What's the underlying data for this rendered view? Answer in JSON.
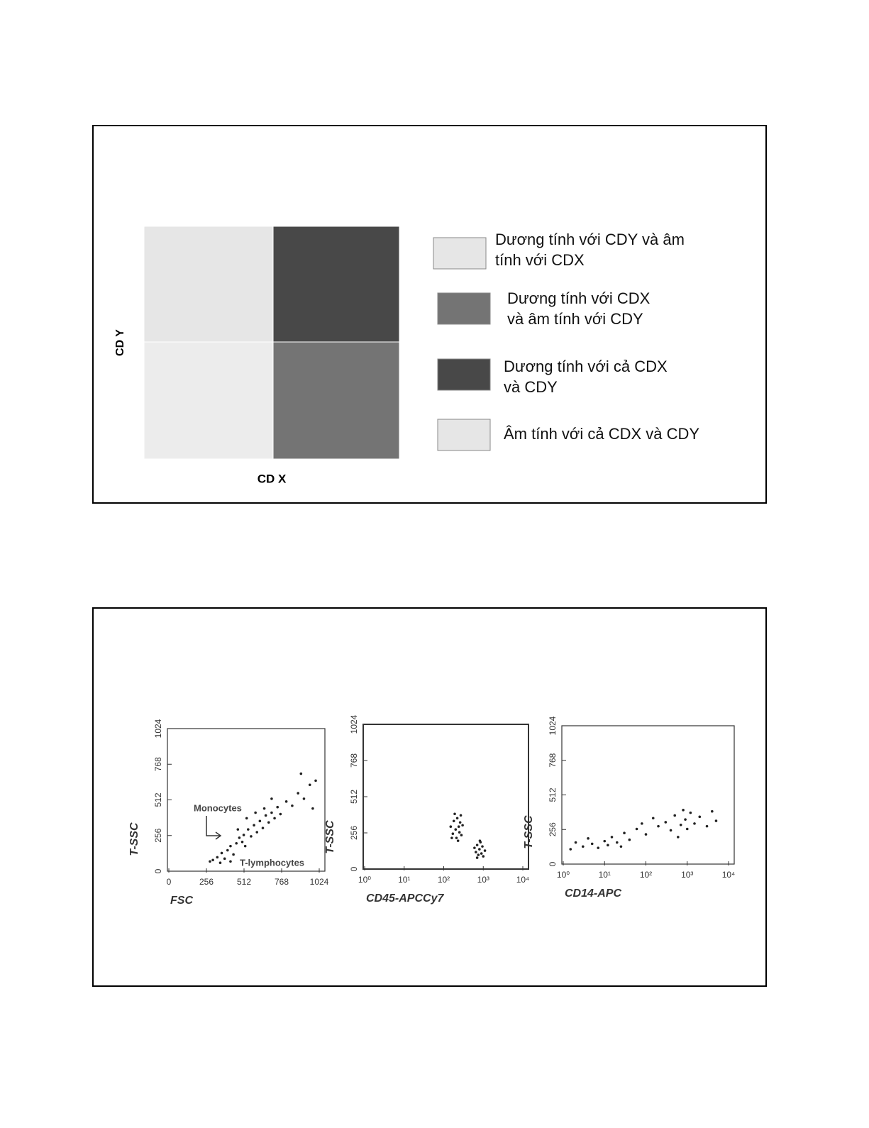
{
  "diagram": {
    "y_label": "CD Y",
    "x_label": "CD X",
    "quadrants": [
      {
        "position": "top-left",
        "color": "#e6e6e6"
      },
      {
        "position": "top-right",
        "color": "#484848"
      },
      {
        "position": "bottom-left",
        "color": "#ececec"
      },
      {
        "position": "bottom-right",
        "color": "#747474"
      }
    ],
    "legend": [
      {
        "color": "#e6e6e6",
        "label_lines": [
          "Dương tính với CDY và âm",
          "tính với CDX"
        ]
      },
      {
        "color": "#747474",
        "label_lines": [
          "Dương tính với CDX",
          "và âm tính với CDY"
        ]
      },
      {
        "color": "#484848",
        "label_lines": [
          "Dương tính với cả CDX",
          "và CDY"
        ]
      },
      {
        "color": "#e6e6e6",
        "label_lines": [
          "Âm tính với cả CDX và CDY"
        ]
      }
    ]
  },
  "chart_data": [
    {
      "type": "scatter",
      "x_label": "FSC",
      "y_label": "T-SSC",
      "color": "#222222",
      "xlim": [
        0,
        1024
      ],
      "xticks": [
        0,
        256,
        512,
        768,
        1024
      ],
      "ylim": [
        0,
        1024
      ],
      "yticks": [
        0,
        256,
        512,
        768,
        1024
      ],
      "annotations": [
        "Monocytes",
        "T-lymphocytes"
      ],
      "x": [
        300,
        330,
        360,
        380,
        400,
        420,
        440,
        460,
        480,
        500,
        510,
        520,
        540,
        560,
        580,
        600,
        620,
        640,
        660,
        680,
        700,
        720,
        740,
        760,
        800,
        840,
        880,
        920,
        960,
        900,
        280,
        350,
        420,
        470,
        530,
        590,
        650,
        700,
        980,
        1000
      ],
      "values": [
        80,
        100,
        130,
        90,
        150,
        180,
        120,
        200,
        240,
        210,
        260,
        180,
        300,
        250,
        330,
        280,
        360,
        310,
        400,
        350,
        420,
        380,
        460,
        410,
        500,
        470,
        560,
        520,
        620,
        700,
        70,
        60,
        70,
        300,
        380,
        420,
        450,
        520,
        450,
        650
      ]
    },
    {
      "type": "scatter",
      "x_label": "CD45-APCCy7",
      "y_label": "T-SSC",
      "color": "#222222",
      "xlog": true,
      "xlim": [
        1,
        10000
      ],
      "xticks": [
        {
          "value": 1,
          "label": "10⁰"
        },
        {
          "value": 10,
          "label": "10¹"
        },
        {
          "value": 100,
          "label": "10²"
        },
        {
          "value": 1000,
          "label": "10³"
        },
        {
          "value": 10000,
          "label": "10⁴"
        }
      ],
      "ylim": [
        0,
        1024
      ],
      "yticks": [
        0,
        256,
        512,
        768,
        1024
      ],
      "x": [
        150,
        170,
        180,
        200,
        210,
        220,
        240,
        250,
        260,
        280,
        300,
        190,
        230,
        160,
        270,
        600,
        650,
        700,
        750,
        800,
        850,
        900,
        950,
        1000,
        1100,
        700,
        820
      ],
      "values": [
        300,
        250,
        340,
        280,
        220,
        360,
        300,
        260,
        330,
        240,
        310,
        390,
        200,
        220,
        380,
        150,
        120,
        170,
        100,
        140,
        190,
        110,
        160,
        90,
        130,
        80,
        200
      ]
    },
    {
      "type": "scatter",
      "x_label": "CD14-APC",
      "y_label": "T-SSC",
      "color": "#222222",
      "xlog": true,
      "xlim": [
        1,
        10000
      ],
      "xticks": [
        {
          "value": 1,
          "label": "10⁰"
        },
        {
          "value": 10,
          "label": "10¹"
        },
        {
          "value": 100,
          "label": "10²"
        },
        {
          "value": 1000,
          "label": "10³"
        },
        {
          "value": 10000,
          "label": "10⁴"
        }
      ],
      "ylim": [
        0,
        1024
      ],
      "yticks": [
        0,
        256,
        512,
        768,
        1024
      ],
      "x": [
        1.5,
        2,
        3,
        4,
        5,
        7,
        10,
        12,
        15,
        20,
        25,
        30,
        40,
        60,
        80,
        100,
        150,
        200,
        300,
        400,
        500,
        700,
        900,
        1000,
        1200,
        1500,
        2000,
        3000,
        4000,
        5000,
        600,
        800
      ],
      "values": [
        110,
        160,
        130,
        190,
        150,
        120,
        170,
        140,
        200,
        160,
        130,
        230,
        180,
        260,
        300,
        220,
        340,
        280,
        310,
        250,
        360,
        290,
        330,
        260,
        380,
        300,
        350,
        280,
        390,
        320,
        200,
        400
      ]
    }
  ]
}
